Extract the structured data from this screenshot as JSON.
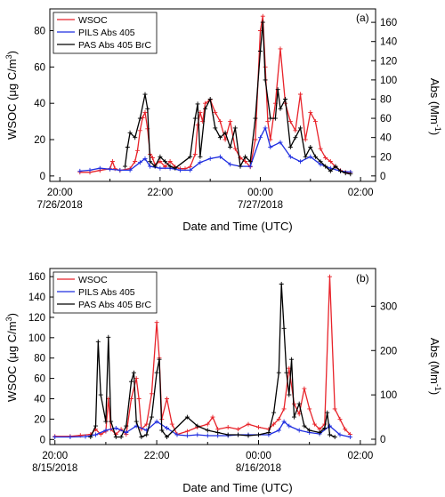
{
  "chart_data": [
    {
      "type": "line",
      "panel_label": "(a)",
      "xlabel": "Date and Time (UTC)",
      "ylabel_left": {
        "main": "WSOC (",
        "unit_mu": "μ",
        "unit_rest": "g C/m",
        "unit_sup": "3",
        "close": ")"
      },
      "ylabel_right": {
        "main": "Abs (Mm",
        "sup": "-1",
        "close": ")"
      },
      "x_tick_labels": [
        {
          "time": "20:00",
          "date": "7/26/2018"
        },
        {
          "time": "22:00",
          "date": ""
        },
        {
          "time": "00:00",
          "date": "7/27/2018"
        },
        {
          "time": "02:00",
          "date": ""
        }
      ],
      "x_tick_hours": [
        20,
        22,
        24,
        26
      ],
      "xlim_hours": [
        19.8,
        26.3
      ],
      "ylim_left": [
        -3,
        92
      ],
      "ylim_right": [
        -5.7,
        174
      ],
      "y_ticks_left": [
        0,
        20,
        40,
        60,
        80
      ],
      "y_ticks_right": [
        0,
        20,
        40,
        60,
        80,
        100,
        120,
        140,
        160
      ],
      "legend": {
        "position": "top-left",
        "entries": [
          "WSOC",
          "PILS Abs 405",
          "PAS Abs 405 BrC"
        ]
      },
      "series": [
        {
          "name": "WSOC",
          "axis": "left",
          "color": "#e8232a",
          "x": [
            20.4,
            20.6,
            20.8,
            21.0,
            21.05,
            21.1,
            21.2,
            21.4,
            21.5,
            21.55,
            21.6,
            21.65,
            21.7,
            21.75,
            21.8,
            21.85,
            21.9,
            22.0,
            22.1,
            22.2,
            22.3,
            22.4,
            22.5,
            22.6,
            22.7,
            22.75,
            22.8,
            22.85,
            22.9,
            23.0,
            23.1,
            23.2,
            23.3,
            23.4,
            23.5,
            23.6,
            23.7,
            23.8,
            23.9,
            24.0,
            24.05,
            24.1,
            24.15,
            24.2,
            24.3,
            24.4,
            24.5,
            24.6,
            24.7,
            24.8,
            24.9,
            25.0,
            25.1,
            25.2,
            25.3,
            25.4,
            25.5,
            25.6,
            25.7,
            25.8
          ],
          "y": [
            2,
            2,
            3,
            4,
            8,
            4,
            3,
            4,
            8,
            14,
            25,
            32,
            35,
            26,
            12,
            10,
            6,
            8,
            5,
            8,
            5,
            4,
            4,
            5,
            12,
            28,
            35,
            30,
            40,
            42,
            35,
            30,
            20,
            30,
            15,
            10,
            8,
            5,
            20,
            80,
            88,
            60,
            30,
            20,
            40,
            70,
            40,
            30,
            25,
            45,
            20,
            35,
            30,
            15,
            10,
            8,
            5,
            3,
            2,
            2
          ]
        },
        {
          "name": "PILS Abs 405",
          "axis": "right",
          "color": "#1f2ee0",
          "x": [
            20.4,
            20.6,
            20.8,
            21.0,
            21.2,
            21.4,
            21.6,
            21.7,
            21.8,
            22.0,
            22.2,
            22.4,
            22.6,
            22.8,
            23.0,
            23.2,
            23.4,
            23.6,
            23.8,
            24.0,
            24.1,
            24.2,
            24.4,
            24.6,
            24.8,
            25.0,
            25.2,
            25.4,
            25.6,
            25.8
          ],
          "y": [
            5,
            6,
            8,
            7,
            6,
            6,
            14,
            18,
            10,
            8,
            8,
            6,
            6,
            14,
            18,
            20,
            12,
            10,
            10,
            40,
            50,
            30,
            35,
            20,
            15,
            20,
            12,
            8,
            5,
            4
          ]
        },
        {
          "name": "PAS Abs 405 BrC",
          "axis": "right",
          "color": "#000000",
          "x": [
            21.3,
            21.35,
            21.4,
            21.5,
            21.6,
            21.7,
            21.75,
            21.8,
            21.9,
            22.0,
            22.1,
            22.2,
            22.3,
            22.6,
            22.7,
            22.75,
            22.8,
            22.9,
            23.0,
            23.1,
            23.2,
            23.3,
            23.4,
            23.5,
            23.6,
            23.7,
            23.8,
            23.9,
            24.0,
            24.05,
            24.1,
            24.2,
            24.3,
            24.35,
            24.4,
            24.5,
            24.6,
            24.7,
            24.8,
            24.9,
            25.0,
            25.1,
            25.2,
            25.3,
            25.4,
            25.5,
            25.6,
            25.7,
            25.8
          ],
          "y": [
            10,
            30,
            45,
            40,
            60,
            85,
            70,
            15,
            10,
            20,
            15,
            10,
            8,
            20,
            60,
            75,
            20,
            70,
            80,
            50,
            40,
            45,
            30,
            50,
            10,
            20,
            15,
            60,
            130,
            160,
            100,
            60,
            60,
            90,
            70,
            80,
            30,
            40,
            50,
            20,
            30,
            20,
            15,
            10,
            5,
            10,
            5,
            3,
            2
          ]
        }
      ]
    },
    {
      "type": "line",
      "panel_label": "(b)",
      "xlabel": "Date and Time (UTC)",
      "ylabel_left": {
        "main": "WSOC (",
        "unit_mu": "μ",
        "unit_rest": "g C/m",
        "unit_sup": "3",
        "close": ")"
      },
      "ylabel_right": {
        "main": "Abs (Mm",
        "sup": "-1",
        "close": ")"
      },
      "x_tick_labels": [
        {
          "time": "20:00",
          "date": "8/15/2018"
        },
        {
          "time": "22:00",
          "date": ""
        },
        {
          "time": "00:00",
          "date": "8/16/2018"
        },
        {
          "time": "02:00",
          "date": ""
        }
      ],
      "x_tick_hours": [
        20,
        22,
        24,
        26
      ],
      "xlim_hours": [
        19.9,
        26.3
      ],
      "ylim_left": [
        -5,
        168
      ],
      "ylim_right": [
        -12,
        385
      ],
      "y_ticks_left": [
        0,
        20,
        40,
        60,
        80,
        100,
        120,
        140,
        160
      ],
      "y_ticks_right": [
        0,
        100,
        200,
        300
      ],
      "legend": {
        "position": "top-left",
        "entries": [
          "WSOC",
          "PILS Abs 405",
          "PAS Abs 405 BrC"
        ]
      },
      "series": [
        {
          "name": "WSOC",
          "axis": "left",
          "color": "#e8232a",
          "x": [
            20.0,
            20.3,
            20.5,
            20.7,
            20.8,
            20.9,
            21.0,
            21.05,
            21.1,
            21.2,
            21.3,
            21.4,
            21.5,
            21.6,
            21.65,
            21.7,
            21.8,
            21.9,
            22.0,
            22.05,
            22.1,
            22.2,
            22.3,
            22.4,
            22.6,
            22.8,
            23.0,
            23.1,
            23.2,
            23.4,
            23.6,
            23.8,
            24.0,
            24.2,
            24.3,
            24.4,
            24.5,
            24.6,
            24.7,
            24.8,
            24.9,
            25.0,
            25.1,
            25.2,
            25.3,
            25.4,
            25.5,
            25.6,
            25.7,
            25.8
          ],
          "y": [
            3,
            3,
            4,
            5,
            10,
            5,
            8,
            40,
            10,
            5,
            10,
            5,
            40,
            60,
            40,
            10,
            15,
            45,
            115,
            80,
            20,
            40,
            15,
            5,
            8,
            12,
            15,
            22,
            10,
            12,
            10,
            15,
            12,
            10,
            15,
            20,
            30,
            70,
            35,
            25,
            50,
            30,
            15,
            10,
            15,
            160,
            30,
            20,
            10,
            5
          ]
        },
        {
          "name": "PILS Abs 405",
          "axis": "right",
          "color": "#1f2ee0",
          "x": [
            20.0,
            20.3,
            20.6,
            20.8,
            21.0,
            21.2,
            21.4,
            21.6,
            21.8,
            22.0,
            22.2,
            22.4,
            22.6,
            22.8,
            23.0,
            23.2,
            23.4,
            23.6,
            23.8,
            24.0,
            24.2,
            24.4,
            24.5,
            24.6,
            24.8,
            25.0,
            25.2,
            25.4,
            25.6,
            25.8
          ],
          "y": [
            5,
            5,
            6,
            10,
            20,
            25,
            15,
            30,
            20,
            40,
            25,
            10,
            8,
            10,
            8,
            8,
            8,
            10,
            10,
            10,
            10,
            20,
            40,
            30,
            20,
            15,
            12,
            30,
            10,
            5
          ]
        },
        {
          "name": "PAS Abs 405 BrC",
          "axis": "right",
          "color": "#000000",
          "x": [
            20.7,
            20.8,
            20.85,
            20.9,
            21.0,
            21.05,
            21.1,
            21.2,
            21.3,
            21.4,
            21.5,
            21.55,
            21.6,
            21.7,
            21.8,
            21.9,
            22.0,
            22.05,
            22.1,
            22.2,
            22.6,
            22.8,
            23.0,
            23.2,
            23.4,
            23.6,
            23.8,
            24.0,
            24.2,
            24.3,
            24.4,
            24.45,
            24.5,
            24.55,
            24.6,
            24.65,
            24.7,
            24.8,
            24.9,
            25.0,
            25.2,
            25.3,
            25.35,
            25.4,
            25.5
          ],
          "y": [
            5,
            30,
            220,
            100,
            40,
            230,
            40,
            5,
            5,
            30,
            130,
            150,
            40,
            5,
            10,
            50,
            150,
            180,
            20,
            5,
            50,
            30,
            20,
            15,
            10,
            10,
            8,
            10,
            15,
            60,
            150,
            350,
            250,
            150,
            100,
            180,
            50,
            80,
            30,
            20,
            15,
            25,
            60,
            10,
            5
          ]
        }
      ]
    }
  ]
}
